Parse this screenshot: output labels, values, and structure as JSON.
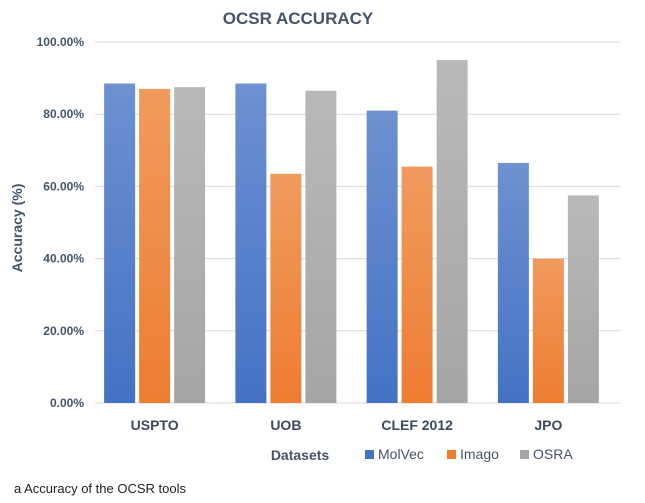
{
  "chart_data": {
    "type": "bar",
    "title": "OCSR ACCURACY",
    "xlabel": "Datasets",
    "ylabel": "Accuracy (%)",
    "ylim": [
      0,
      100
    ],
    "yticks": [
      0,
      20,
      40,
      60,
      80,
      100
    ],
    "ytick_labels": [
      "0.00%",
      "20.00%",
      "40.00%",
      "60.00%",
      "80.00%",
      "100.00%"
    ],
    "grid": true,
    "legend_position": "bottom-right",
    "categories": [
      "USPTO",
      "UOB",
      "CLEF 2012",
      "JPO"
    ],
    "series": [
      {
        "name": "MolVec",
        "color": "#4472c4",
        "values": [
          88.5,
          88.5,
          81.0,
          66.5
        ]
      },
      {
        "name": "Imago",
        "color": "#ed7d31",
        "values": [
          87.0,
          63.5,
          65.5,
          40.0
        ]
      },
      {
        "name": "OSRA",
        "color": "#a5a5a5",
        "values": [
          87.5,
          86.5,
          95.0,
          57.5
        ]
      }
    ]
  },
  "caption": "a  Accuracy of the OCSR tools"
}
